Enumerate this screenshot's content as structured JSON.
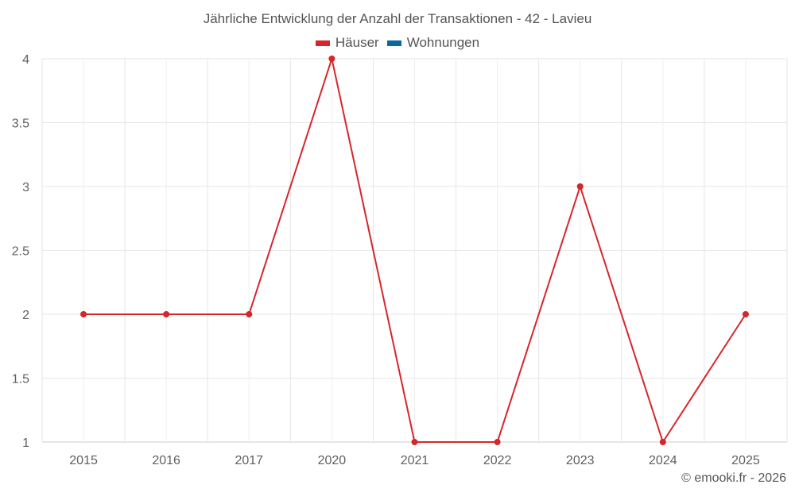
{
  "title": "Jährliche Entwicklung der Anzahl der Transaktionen - 42 - Lavieu",
  "legend": [
    {
      "label": "Häuser",
      "color": "#d7262b"
    },
    {
      "label": "Wohnungen",
      "color": "#0a67a3"
    }
  ],
  "credit": "© emooki.fr - 2026",
  "chart_data": {
    "type": "line",
    "title": "Jährliche Entwicklung der Anzahl der Transaktionen - 42 - Lavieu",
    "categories": [
      "2015",
      "2016",
      "2017",
      "2020",
      "2021",
      "2022",
      "2023",
      "2024",
      "2025"
    ],
    "series": [
      {
        "name": "Häuser",
        "color": "#d7262b",
        "values": [
          2,
          2,
          2,
          4,
          1,
          1,
          3,
          1,
          2
        ]
      },
      {
        "name": "Wohnungen",
        "color": "#0a67a3",
        "values": []
      }
    ],
    "xlabel": "",
    "ylabel": "",
    "ylim": [
      1,
      4
    ],
    "yticks": [
      "1",
      "1.5",
      "2",
      "2.5",
      "3",
      "3.5",
      "4"
    ],
    "grid": true,
    "legend_position": "top"
  }
}
